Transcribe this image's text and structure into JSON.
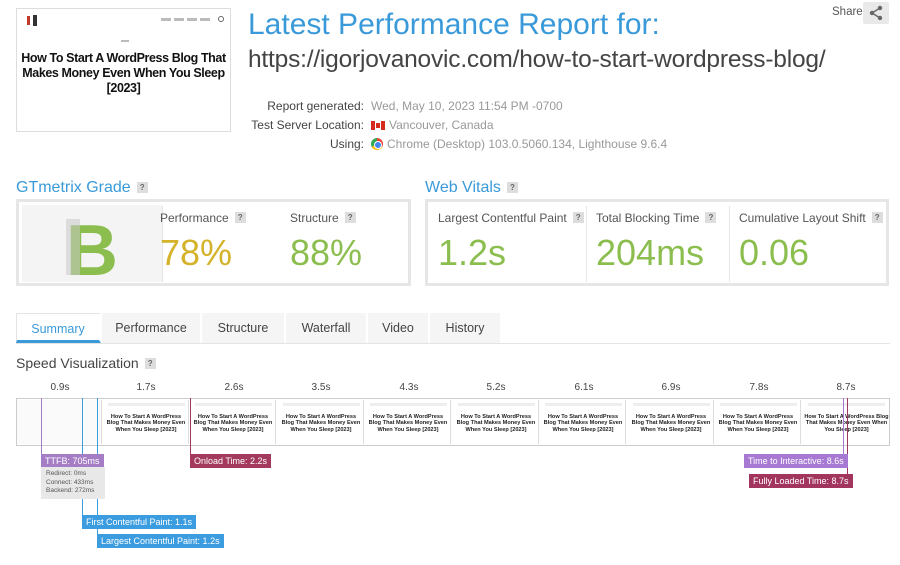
{
  "header": {
    "thumbnail_title": "How To Start A WordPress Blog That Makes Money Even When You Sleep [2023]",
    "title": "Latest Performance Report for:",
    "url": "https://igorjovanovic.com/how-to-start-wordpress-blog/",
    "share_label": "Share",
    "share_icon": "share-icon"
  },
  "meta": {
    "generated_label": "Report generated:",
    "generated_value": "Wed, May 10, 2023 11:54 PM -0700",
    "location_label": "Test Server Location:",
    "location_value": "Vancouver, Canada",
    "using_label": "Using:",
    "using_value": "Chrome (Desktop) 103.0.5060.134, Lighthouse 9.6.4"
  },
  "grade": {
    "heading": "GTmetrix Grade",
    "help": "?",
    "letter": "B",
    "performance_label": "Performance",
    "performance_value": "78%",
    "structure_label": "Structure",
    "structure_value": "88%"
  },
  "vitals": {
    "heading": "Web Vitals",
    "help": "?",
    "lcp_label": "Largest Contentful Paint",
    "lcp_value": "1.2s",
    "tbt_label": "Total Blocking Time",
    "tbt_value": "204ms",
    "cls_label": "Cumulative Layout Shift",
    "cls_value": "0.06"
  },
  "tabs": [
    "Summary",
    "Performance",
    "Structure",
    "Waterfall",
    "Video",
    "History"
  ],
  "speed": {
    "heading": "Speed Visualization",
    "help": "?",
    "times": [
      "0.9s",
      "1.7s",
      "2.6s",
      "3.5s",
      "4.3s",
      "5.2s",
      "6.1s",
      "6.9s",
      "7.8s",
      "8.7s"
    ],
    "frame_text": "How To Start A WordPress Blog That Makes Money Even When You Sleep [2023]",
    "markers": {
      "ttfb": "TTFB: 705ms",
      "redirect": "Redirect: 0ms",
      "connect": "Connect: 433ms",
      "backend": "Backend: 272ms",
      "onload": "Onload Time: 2.2s",
      "fcp": "First Contentful Paint: 1.1s",
      "lcp": "Largest Contentful Paint: 1.2s",
      "tti": "Time to Interactive: 8.6s",
      "fully_loaded": "Fully Loaded Time: 8.7s"
    }
  },
  "colors": {
    "accent": "#3a9ad9",
    "grade_green": "#8cbe4f",
    "perf_yellow": "#d4b22a",
    "ttfb_purple": "#a47dc4",
    "onload_red": "#a33a5e",
    "fcp_blue": "#3b9ce0",
    "tti_purple": "#a779d3",
    "fully_loaded_red": "#a2355e"
  }
}
